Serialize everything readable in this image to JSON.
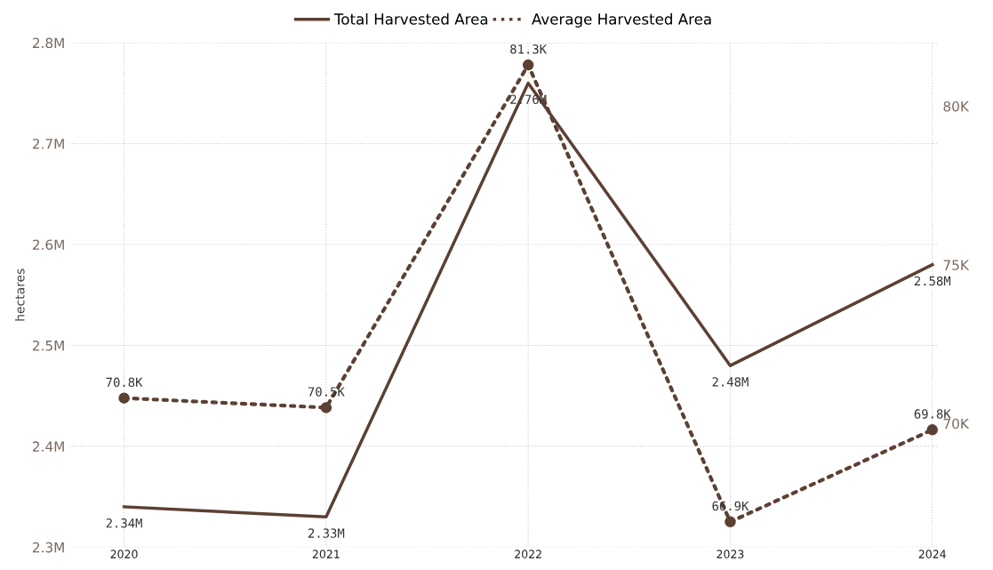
{
  "chart_data": {
    "type": "line",
    "ylabel": "hectares",
    "categories": [
      "2020",
      "2021",
      "2022",
      "2023",
      "2024"
    ],
    "series": [
      {
        "name": "Total Harvested Area",
        "color": "#5c4033",
        "values": [
          2340000,
          2330000,
          2760000,
          2480000,
          2580000
        ],
        "value_labels": [
          "2.34M",
          "2.33M",
          "2.76M",
          "2.48M",
          "2.58M"
        ],
        "line_style": "solid",
        "marker": "none"
      },
      {
        "name": "Average Harvested Area",
        "color": "#5c4033",
        "axis": "y2",
        "values": [
          70800,
          70500,
          81300,
          66900,
          69800
        ],
        "value_labels": [
          "70.8K",
          "70.5K",
          "81.3K",
          "66.9K",
          "69.8K"
        ],
        "line_style": "dotted",
        "marker": "circle"
      }
    ],
    "ylim": [
      2300000,
      2800000
    ],
    "yticks": [
      {
        "value": 2300000,
        "label": "2.3M"
      },
      {
        "value": 2400000,
        "label": "2.4M"
      },
      {
        "value": 2500000,
        "label": "2.5M"
      },
      {
        "value": 2600000,
        "label": "2.6M"
      },
      {
        "value": 2700000,
        "label": "2.7M"
      },
      {
        "value": 2800000,
        "label": "2.8M"
      }
    ],
    "y2lim": [
      66100,
      82000
    ],
    "y2ticks": [
      {
        "value": 70000,
        "label": "70K"
      },
      {
        "value": 75000,
        "label": "75K"
      },
      {
        "value": 80000,
        "label": "80K"
      }
    ],
    "grid": true,
    "legend": "top"
  }
}
